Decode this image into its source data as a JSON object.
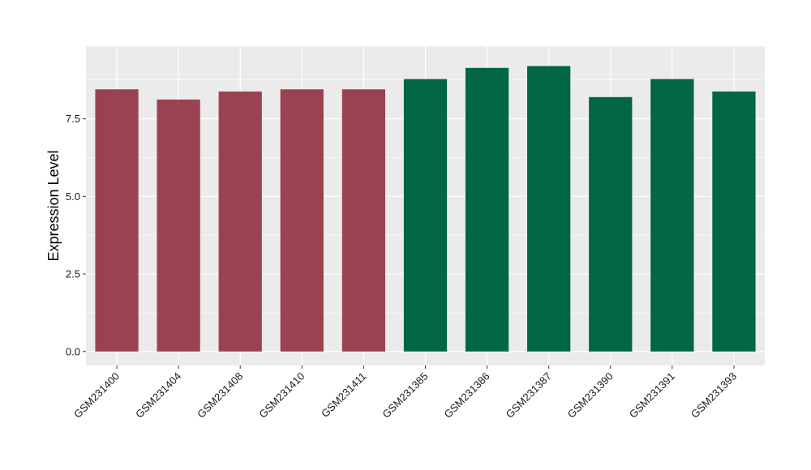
{
  "chart_data": {
    "type": "bar",
    "title": "",
    "xlabel": "",
    "ylabel": "Expression Level",
    "categories": [
      "GSM231400",
      "GSM231404",
      "GSM231408",
      "GSM231410",
      "GSM231411",
      "GSM231385",
      "GSM231386",
      "GSM231387",
      "GSM231390",
      "GSM231391",
      "GSM231393"
    ],
    "values": [
      8.45,
      8.12,
      8.38,
      8.45,
      8.45,
      8.78,
      9.14,
      9.2,
      8.2,
      8.78,
      8.38
    ],
    "bar_colors": [
      "#9a4350",
      "#9a4350",
      "#9a4350",
      "#9a4350",
      "#9a4350",
      "#006645",
      "#006645",
      "#006645",
      "#006645",
      "#006645",
      "#006645"
    ],
    "ylim": [
      -0.45,
      9.84
    ],
    "yticks": [
      0.0,
      2.5,
      5.0,
      7.5
    ],
    "ytick_labels": [
      "0.0",
      "2.5",
      "5.0",
      "7.5"
    ],
    "grid": true,
    "panel_background": "#ebebeb",
    "grid_color": "#ffffff"
  }
}
